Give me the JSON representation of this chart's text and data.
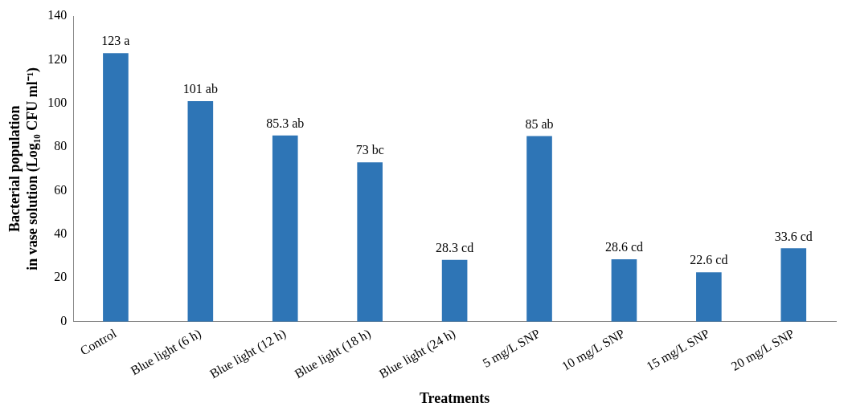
{
  "chart_data": {
    "type": "bar",
    "xlabel": "Treatments",
    "ylabel": "Bacterial population in vase solution (Log₁₀ CFU ml⁻¹)",
    "categories": [
      "Control",
      "Blue light (6 h)",
      "Blue light (12 h)",
      "Blue light (18 h)",
      "Blue light (24 h)",
      "5 mg/L SNP",
      "10 mg/L SNP",
      "15 mg/L SNP",
      "20 mg/L SNP"
    ],
    "values": [
      123,
      101,
      85.3,
      73,
      28.3,
      85,
      28.6,
      22.6,
      33.6
    ],
    "value_labels": [
      "123 a",
      "101 ab",
      "85.3 ab",
      "73 bc",
      "28.3 cd",
      "85 ab",
      "28.6 cd",
      "22.6 cd",
      "33.6 cd"
    ],
    "color": "#2e75b6",
    "ylim": [
      0,
      140
    ],
    "yticks": [
      0,
      20,
      40,
      60,
      80,
      100,
      120,
      140
    ],
    "grid": false,
    "legend": false
  }
}
